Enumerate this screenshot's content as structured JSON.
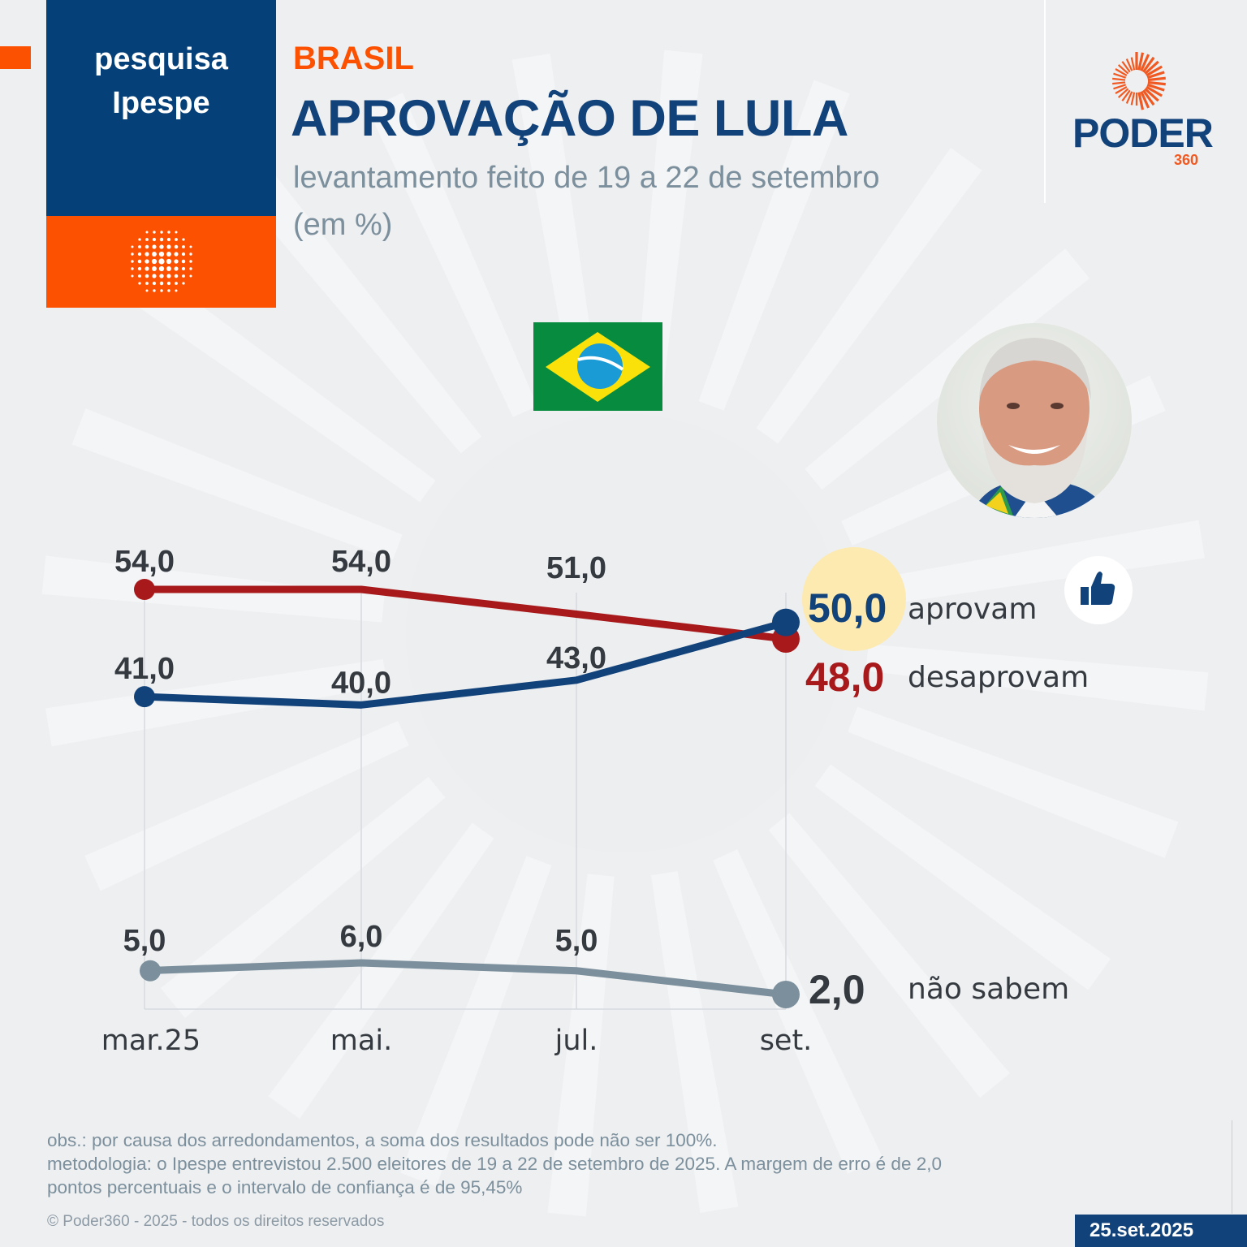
{
  "header": {
    "source_box": {
      "line1": "pesquisa",
      "line2": "Ipespe",
      "icon": "globe-dots-icon"
    },
    "region": "BRASIL",
    "title": "APROVAÇÃO DE LULA",
    "subtitle_line1": "levantamento feito de 19 a 22 de setembro",
    "subtitle_line2": "(em %)",
    "publisher_logo": {
      "name": "PODER",
      "suffix": "360",
      "icon": "sunburst-icon"
    }
  },
  "images": {
    "flag": "brazil-flag",
    "photo": "lula-portrait",
    "thumbs_up": "thumbs-up-icon"
  },
  "colors": {
    "approve": "#12427a",
    "disapprove": "#a8191b",
    "dont_know": "#7b8f9c",
    "accent_orange": "#fb5100",
    "highlight": "#fdeab1"
  },
  "chart_data": {
    "type": "line",
    "title": "APROVAÇÃO DE LULA",
    "subtitle": "levantamento feito de 19 a 22 de setembro (em %)",
    "xlabel": "",
    "ylabel": "",
    "categories": [
      "mar.25",
      "mai.",
      "jul.",
      "set."
    ],
    "grid": "vertical lines at each category",
    "legend": "right, inline at last point",
    "series": [
      {
        "key": "disapprove",
        "name": "desaprovam",
        "values": [
          54.0,
          54.0,
          51.0,
          48.0
        ],
        "labels": [
          "54,0",
          "54,0",
          "51,0",
          "48,0"
        ]
      },
      {
        "key": "approve",
        "name": "aprovam",
        "values": [
          41.0,
          40.0,
          43.0,
          50.0
        ],
        "labels": [
          "41,0",
          "40,0",
          "43,0",
          "50,0"
        ]
      },
      {
        "key": "dont_know",
        "name": "não sabem",
        "values": [
          5.0,
          6.0,
          5.0,
          2.0
        ],
        "labels": [
          "5,0",
          "6,0",
          "5,0",
          "2,0"
        ]
      }
    ]
  },
  "footer": {
    "obs": "obs.: por causa dos arredondamentos, a soma dos resultados pode não ser 100%.",
    "method_line1": "metodologia: o Ipespe entrevistou 2.500 eleitores de 19 a 22 de setembro de 2025. A margem de erro é de 2,0",
    "method_line2": "pontos percentuais e o intervalo de confiança é de 95,45%",
    "copyright": "© Poder360 - 2025 - todos os direitos reservados",
    "date": "25.set.2025"
  }
}
